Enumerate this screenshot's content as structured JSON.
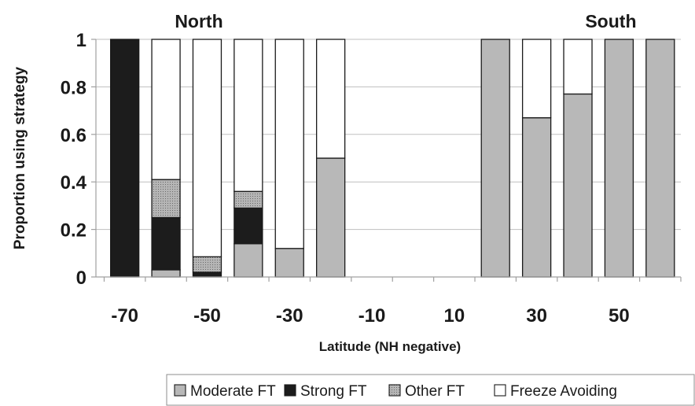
{
  "chart_data": {
    "type": "bar",
    "stacked": true,
    "title": "",
    "xlabel": "Latitude (NH negative)",
    "ylabel": "Proportion using strategy",
    "ylim": [
      0,
      1
    ],
    "yticks": [
      "0",
      "0.2",
      "0.4",
      "0.6",
      "0.8",
      "1"
    ],
    "xlim": [
      -77,
      65
    ],
    "xticks": [
      "-70",
      "-50",
      "-30",
      "-10",
      "10",
      "30",
      "50"
    ],
    "grid": true,
    "legend_position": "bottom-right",
    "annotations": [
      {
        "text": "North",
        "x": -52
      },
      {
        "text": "South",
        "x": 48
      }
    ],
    "x": [
      -70,
      -60,
      -50,
      -40,
      -30,
      -20,
      20,
      30,
      40,
      50,
      60
    ],
    "series": [
      {
        "name": "Moderate FT",
        "color": "#b8b8b8",
        "pattern": "solid",
        "values": [
          0,
          0.03,
          0,
          0.14,
          0.12,
          0.5,
          1,
          0.67,
          0.77,
          1,
          1
        ]
      },
      {
        "name": "Strong FT",
        "color": "#1c1c1c",
        "pattern": "solid",
        "values": [
          1,
          0.22,
          0.02,
          0.15,
          0,
          0,
          0,
          0,
          0,
          0,
          0
        ]
      },
      {
        "name": "Other FT",
        "color": "#a3a3a3",
        "pattern": "dotted",
        "values": [
          0,
          0.16,
          0.065,
          0.07,
          0,
          0,
          0,
          0,
          0,
          0,
          0
        ]
      },
      {
        "name": "Freeze Avoiding",
        "color": "#ffffff",
        "pattern": "solid",
        "values": [
          0,
          0.59,
          0.915,
          0.64,
          0.88,
          0.5,
          0,
          0.33,
          0.23,
          0,
          0
        ]
      }
    ]
  }
}
